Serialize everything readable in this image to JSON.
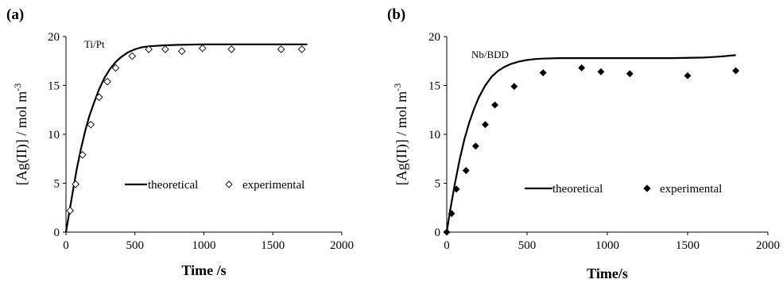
{
  "chart_data": [
    {
      "type": "scatter",
      "panel_label": "(a)",
      "annotation": "Ti/Pt",
      "xlabel": "Time /s",
      "ylabel": "[Ag(II)] / mol m",
      "ylabel_sup": "-3",
      "xlim": [
        0,
        2000
      ],
      "ylim": [
        0,
        20
      ],
      "x_ticks": [
        "0",
        "500",
        "1000",
        "1500",
        "2000"
      ],
      "y_ticks": [
        "0",
        "5",
        "10",
        "15",
        "20"
      ],
      "legend_position": "lower-right",
      "series": [
        {
          "name": "theoretical",
          "kind": "line",
          "color": "#000000",
          "x": [
            0,
            20,
            50,
            80,
            110,
            140,
            170,
            200,
            240,
            280,
            320,
            360,
            400,
            450,
            500,
            550,
            600,
            700,
            800,
            1000,
            1200,
            1400,
            1600,
            1750
          ],
          "y": [
            0,
            1.7,
            4.2,
            6.6,
            8.6,
            10.4,
            11.9,
            13.1,
            14.6,
            15.8,
            16.7,
            17.4,
            17.9,
            18.4,
            18.7,
            18.9,
            19.0,
            19.1,
            19.15,
            19.2,
            19.2,
            19.2,
            19.2,
            19.2
          ]
        },
        {
          "name": "experimental",
          "kind": "marker",
          "marker": "diamond-open",
          "color": "#000000",
          "x": [
            30,
            70,
            120,
            180,
            240,
            300,
            360,
            480,
            600,
            720,
            840,
            990,
            1200,
            1560,
            1710
          ],
          "y": [
            2.2,
            4.9,
            7.9,
            11.0,
            13.8,
            15.4,
            16.8,
            18.0,
            18.7,
            18.7,
            18.5,
            18.8,
            18.7,
            18.7,
            18.7
          ]
        }
      ]
    },
    {
      "type": "scatter",
      "panel_label": "(b)",
      "annotation": "Nb/BDD",
      "xlabel": "Time/s",
      "ylabel": "[Ag(II)] / mol m",
      "ylabel_sup": "-3",
      "xlim": [
        0,
        2000
      ],
      "ylim": [
        0,
        20
      ],
      "x_ticks": [
        "0",
        "500",
        "1000",
        "1500",
        "2000"
      ],
      "y_ticks": [
        "0",
        "5",
        "10",
        "15",
        "20"
      ],
      "legend_position": "lower-right",
      "series": [
        {
          "name": "theoretical",
          "kind": "line",
          "color": "#000000",
          "x": [
            0,
            20,
            50,
            80,
            110,
            140,
            170,
            200,
            240,
            280,
            320,
            360,
            400,
            450,
            500,
            550,
            600,
            700,
            800,
            1000,
            1200,
            1400,
            1600,
            1700,
            1800
          ],
          "y": [
            0,
            2.1,
            4.9,
            7.4,
            9.5,
            11.2,
            12.6,
            13.8,
            15.0,
            15.9,
            16.5,
            16.9,
            17.2,
            17.45,
            17.6,
            17.7,
            17.75,
            17.8,
            17.8,
            17.8,
            17.8,
            17.8,
            17.85,
            17.95,
            18.1
          ]
        },
        {
          "name": "experimental",
          "kind": "marker",
          "marker": "diamond-filled",
          "color": "#000000",
          "x": [
            0,
            30,
            60,
            120,
            180,
            240,
            300,
            420,
            600,
            840,
            960,
            1140,
            1500,
            1800
          ],
          "y": [
            0,
            1.9,
            4.4,
            6.3,
            8.8,
            11.0,
            13.0,
            14.9,
            16.3,
            16.8,
            16.4,
            16.2,
            16.0,
            16.5
          ]
        }
      ]
    }
  ]
}
